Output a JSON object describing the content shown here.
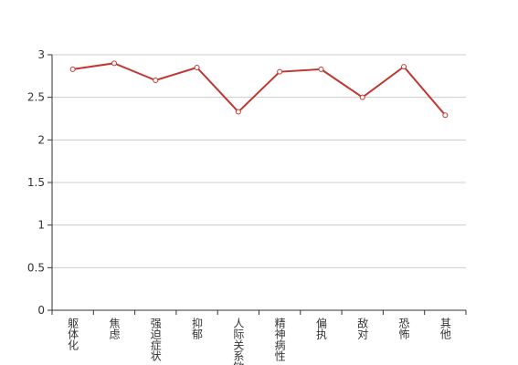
{
  "chart_data": {
    "type": "line",
    "categories": [
      "躯体化",
      "焦虑",
      "强迫症状",
      "抑郁",
      "人际关系敏感",
      "精神病性",
      "偏执",
      "敌对",
      "恐怖",
      "其他"
    ],
    "values": [
      2.83,
      2.9,
      2.7,
      2.85,
      2.33,
      2.8,
      2.83,
      2.5,
      2.86,
      2.29
    ],
    "color": "#c23531",
    "ylim": [
      0,
      3
    ],
    "yticks": [
      0,
      0.5,
      1,
      1.5,
      2,
      2.5,
      3
    ],
    "grid": true
  }
}
